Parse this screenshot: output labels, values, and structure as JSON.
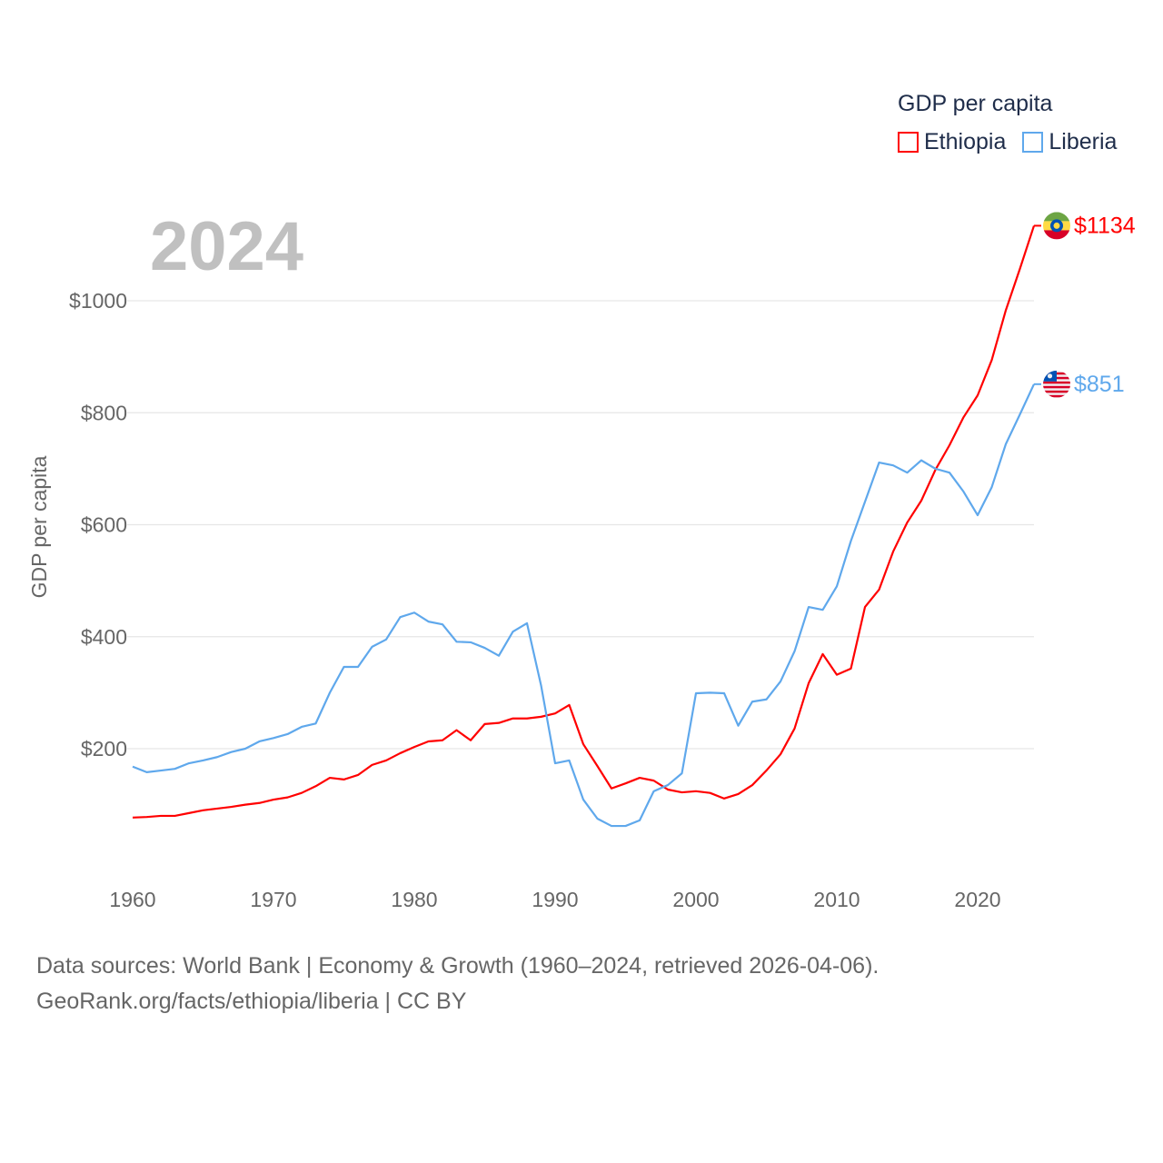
{
  "chart_data": {
    "type": "line",
    "title": "GDP per capita",
    "xlabel": "",
    "ylabel": "GDP per capita",
    "xlim": [
      1960,
      2024
    ],
    "ylim": [
      0,
      1134
    ],
    "x_ticks": [
      1960,
      1970,
      1980,
      1990,
      2000,
      2010,
      2020
    ],
    "x_tick_labels": [
      "1960",
      "1970",
      "1980",
      "1990",
      "2000",
      "2010",
      "2020"
    ],
    "y_ticks": [
      200,
      400,
      600,
      800,
      1000
    ],
    "y_tick_labels": [
      "$200",
      "$400",
      "$600",
      "$800",
      "$1000"
    ],
    "grid": true,
    "legend_placement": "top-right",
    "current_year_label": "2024",
    "x": [
      1960,
      1961,
      1962,
      1963,
      1964,
      1965,
      1966,
      1967,
      1968,
      1969,
      1970,
      1971,
      1972,
      1973,
      1974,
      1975,
      1976,
      1977,
      1978,
      1979,
      1980,
      1981,
      1982,
      1983,
      1984,
      1985,
      1986,
      1987,
      1988,
      1989,
      1990,
      1991,
      1992,
      1993,
      1994,
      1995,
      1996,
      1997,
      1998,
      1999,
      2000,
      2001,
      2002,
      2003,
      2004,
      2005,
      2006,
      2007,
      2008,
      2009,
      2010,
      2011,
      2012,
      2013,
      2014,
      2015,
      2016,
      2017,
      2018,
      2019,
      2020,
      2021,
      2022,
      2023,
      2024
    ],
    "series": [
      {
        "name": "Ethiopia",
        "color": "#ff0000",
        "end_label": "$1134",
        "flag": "ethiopia-flag-icon",
        "values": [
          77,
          78,
          80,
          80,
          85,
          90,
          93,
          96,
          100,
          103,
          109,
          113,
          121,
          133,
          148,
          145,
          153,
          171,
          179,
          192,
          203,
          213,
          215,
          233,
          215,
          244,
          246,
          254,
          254,
          257,
          263,
          278,
          208,
          169,
          129,
          138,
          148,
          143,
          127,
          122,
          124,
          121,
          111,
          119,
          135,
          161,
          190,
          236,
          317,
          369,
          332,
          343,
          453,
          484,
          552,
          604,
          643,
          698,
          742,
          792,
          831,
          894,
          983,
          1057,
          1134
        ]
      },
      {
        "name": "Liberia",
        "color": "#5fa8ec",
        "end_label": "$851",
        "flag": "liberia-flag-icon",
        "values": [
          168,
          158,
          161,
          164,
          174,
          179,
          185,
          194,
          200,
          213,
          219,
          226,
          239,
          245,
          300,
          346,
          346,
          382,
          395,
          435,
          443,
          427,
          422,
          391,
          390,
          380,
          366,
          409,
          424,
          313,
          174,
          179,
          109,
          75,
          62,
          62,
          72,
          124,
          135,
          156,
          299,
          300,
          299,
          241,
          284,
          288,
          320,
          374,
          453,
          448,
          490,
          571,
          641,
          711,
          706,
          693,
          715,
          700,
          693,
          659,
          617,
          667,
          744,
          797,
          851
        ]
      }
    ]
  },
  "footer": {
    "line1": "Data sources: World Bank | Economy & Growth (1960–2024, retrieved 2026-04-06).",
    "line2": "GeoRank.org/facts/ethiopia/liberia | CC BY"
  }
}
